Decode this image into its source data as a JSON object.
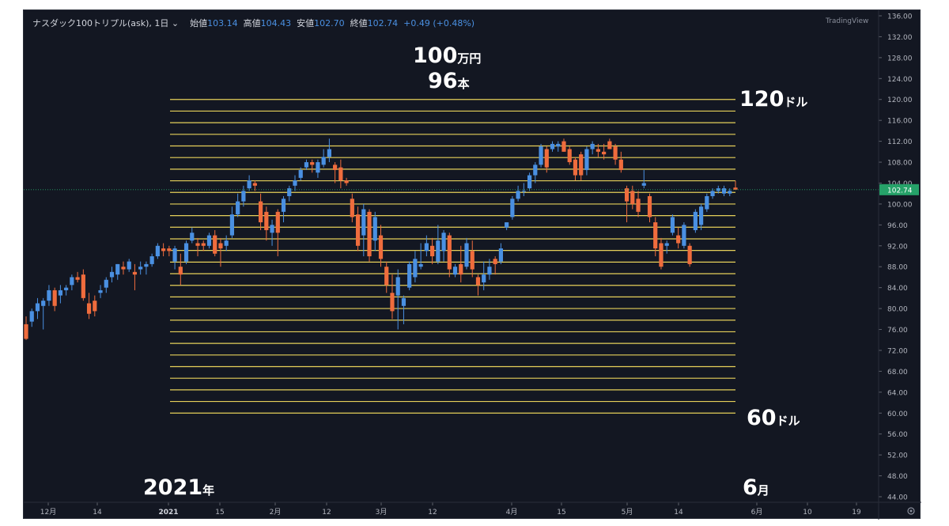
{
  "header": {
    "symbol": "ナスダック100トリプル(ask), 1日",
    "open_label": "始値",
    "open": "103.14",
    "high_label": "高値",
    "high": "104.43",
    "low_label": "安値",
    "low": "102.70",
    "close_label": "終値",
    "close": "102.74",
    "change": "+0.49 (+0.48%)"
  },
  "brand": "TradingView",
  "annotations": {
    "amount_num": "100",
    "amount_unit": "万円",
    "count_num": "96",
    "count_unit": "本",
    "upper_num": "120",
    "upper_unit": "ドル",
    "lower_num": "60",
    "lower_unit": "ドル",
    "start_num": "2021",
    "start_unit": "年",
    "end_num": "6",
    "end_unit": "月"
  },
  "colors": {
    "up": "#4a90e2",
    "down": "#ef6c3d",
    "grid_line": "#e6d05a",
    "price_tag": "#26a269"
  },
  "chart_data": {
    "type": "candlestick",
    "y_axis_ticks": [
      "136.00",
      "132.00",
      "128.00",
      "124.00",
      "120.00",
      "116.00",
      "112.00",
      "108.00",
      "104.00",
      "100.00",
      "96.00",
      "92.00",
      "88.00",
      "84.00",
      "80.00",
      "76.00",
      "72.00",
      "68.00",
      "64.00",
      "60.00",
      "56.00",
      "52.00",
      "48.00",
      "44.00"
    ],
    "ylim": [
      44,
      137
    ],
    "x_axis_labels": [
      "12月",
      "14",
      "2021",
      "15",
      "2月",
      "12",
      "3月",
      "12",
      "4月",
      "15",
      "5月",
      "14",
      "6月",
      "10",
      "19"
    ],
    "last_price": "102.74",
    "grid": {
      "from": 60,
      "to": 120,
      "count": 28
    },
    "candles": [
      {
        "o": 77.0,
        "h": 78.5,
        "l": 74.0,
        "c": 74.2
      },
      {
        "o": 77.5,
        "h": 80.0,
        "l": 76.5,
        "c": 79.5
      },
      {
        "o": 79.5,
        "h": 82.0,
        "l": 78.0,
        "c": 81.0
      },
      {
        "o": 80.5,
        "h": 82.0,
        "l": 76.0,
        "c": 81.5
      },
      {
        "o": 81.5,
        "h": 84.5,
        "l": 80.5,
        "c": 83.5
      },
      {
        "o": 83.5,
        "h": 84.0,
        "l": 79.5,
        "c": 80.5
      },
      {
        "o": 82.5,
        "h": 84.5,
        "l": 81.0,
        "c": 83.5
      },
      {
        "o": 83.5,
        "h": 84.5,
        "l": 82.5,
        "c": 84.0
      },
      {
        "o": 84.5,
        "h": 86.5,
        "l": 83.5,
        "c": 86.0
      },
      {
        "o": 86.0,
        "h": 87.0,
        "l": 85.0,
        "c": 85.5
      },
      {
        "o": 86.5,
        "h": 87.5,
        "l": 81.5,
        "c": 82.0
      },
      {
        "o": 81.0,
        "h": 83.0,
        "l": 78.0,
        "c": 79.0
      },
      {
        "o": 81.5,
        "h": 82.5,
        "l": 78.5,
        "c": 79.5
      },
      {
        "o": 83.0,
        "h": 84.5,
        "l": 82.0,
        "c": 83.5
      },
      {
        "o": 84.0,
        "h": 86.0,
        "l": 83.0,
        "c": 85.5
      },
      {
        "o": 86.0,
        "h": 88.0,
        "l": 85.0,
        "c": 87.0
      },
      {
        "o": 86.5,
        "h": 88.5,
        "l": 85.5,
        "c": 88.5
      },
      {
        "o": 88.0,
        "h": 89.0,
        "l": 86.5,
        "c": 87.5
      },
      {
        "o": 87.5,
        "h": 89.5,
        "l": 87.0,
        "c": 89.0
      },
      {
        "o": 87.0,
        "h": 88.5,
        "l": 83.5,
        "c": 86.5
      },
      {
        "o": 87.5,
        "h": 89.0,
        "l": 86.5,
        "c": 88.0
      },
      {
        "o": 88.0,
        "h": 89.0,
        "l": 86.5,
        "c": 88.5
      },
      {
        "o": 88.5,
        "h": 90.5,
        "l": 88.0,
        "c": 90.0
      },
      {
        "o": 90.0,
        "h": 92.5,
        "l": 89.5,
        "c": 92.0
      },
      {
        "o": 91.5,
        "h": 92.5,
        "l": 90.0,
        "c": 91.0
      },
      {
        "o": 91.5,
        "h": 92.0,
        "l": 90.0,
        "c": 91.0
      },
      {
        "o": 89.0,
        "h": 92.0,
        "l": 87.5,
        "c": 91.5
      },
      {
        "o": 88.0,
        "h": 90.5,
        "l": 84.5,
        "c": 86.5
      },
      {
        "o": 89.0,
        "h": 93.0,
        "l": 88.5,
        "c": 92.5
      },
      {
        "o": 93.0,
        "h": 95.5,
        "l": 92.5,
        "c": 94.5
      },
      {
        "o": 92.5,
        "h": 93.5,
        "l": 90.0,
        "c": 92.0
      },
      {
        "o": 92.5,
        "h": 93.0,
        "l": 91.0,
        "c": 92.0
      },
      {
        "o": 92.0,
        "h": 94.5,
        "l": 91.5,
        "c": 94.0
      },
      {
        "o": 94.0,
        "h": 95.0,
        "l": 90.0,
        "c": 90.5
      },
      {
        "o": 92.5,
        "h": 93.5,
        "l": 88.0,
        "c": 91.5
      },
      {
        "o": 92.0,
        "h": 94.0,
        "l": 91.0,
        "c": 93.0
      },
      {
        "o": 94.0,
        "h": 99.5,
        "l": 93.5,
        "c": 98.0
      },
      {
        "o": 98.0,
        "h": 102.0,
        "l": 97.5,
        "c": 100.5
      },
      {
        "o": 100.5,
        "h": 103.5,
        "l": 99.5,
        "c": 102.5
      },
      {
        "o": 103.0,
        "h": 105.5,
        "l": 102.5,
        "c": 104.5
      },
      {
        "o": 104.0,
        "h": 104.5,
        "l": 102.5,
        "c": 103.5
      },
      {
        "o": 100.5,
        "h": 102.0,
        "l": 95.0,
        "c": 96.5
      },
      {
        "o": 98.5,
        "h": 99.5,
        "l": 93.0,
        "c": 95.0
      },
      {
        "o": 94.5,
        "h": 97.0,
        "l": 92.0,
        "c": 96.0
      },
      {
        "o": 98.5,
        "h": 99.0,
        "l": 90.0,
        "c": 94.5
      },
      {
        "o": 98.5,
        "h": 101.5,
        "l": 96.5,
        "c": 101.0
      },
      {
        "o": 101.5,
        "h": 103.5,
        "l": 100.5,
        "c": 103.0
      },
      {
        "o": 103.5,
        "h": 105.5,
        "l": 102.5,
        "c": 104.5
      },
      {
        "o": 105.0,
        "h": 107.0,
        "l": 104.5,
        "c": 106.5
      },
      {
        "o": 107.0,
        "h": 108.5,
        "l": 106.5,
        "c": 108.0
      },
      {
        "o": 108.0,
        "h": 108.5,
        "l": 106.0,
        "c": 107.5
      },
      {
        "o": 106.0,
        "h": 108.5,
        "l": 105.0,
        "c": 108.0
      },
      {
        "o": 107.5,
        "h": 110.5,
        "l": 107.0,
        "c": 109.0
      },
      {
        "o": 109.0,
        "h": 112.5,
        "l": 108.0,
        "c": 110.5
      },
      {
        "o": 107.5,
        "h": 108.0,
        "l": 104.0,
        "c": 106.5
      },
      {
        "o": 107.0,
        "h": 108.5,
        "l": 103.0,
        "c": 104.5
      },
      {
        "o": 104.5,
        "h": 105.0,
        "l": 103.5,
        "c": 104.0
      },
      {
        "o": 101.0,
        "h": 102.0,
        "l": 96.5,
        "c": 97.5
      },
      {
        "o": 98.0,
        "h": 99.5,
        "l": 91.0,
        "c": 92.0
      },
      {
        "o": 94.0,
        "h": 100.0,
        "l": 90.0,
        "c": 99.0
      },
      {
        "o": 98.5,
        "h": 99.0,
        "l": 89.0,
        "c": 90.0
      },
      {
        "o": 93.0,
        "h": 98.5,
        "l": 91.0,
        "c": 97.5
      },
      {
        "o": 94.0,
        "h": 96.0,
        "l": 88.0,
        "c": 89.5
      },
      {
        "o": 88.0,
        "h": 89.0,
        "l": 83.0,
        "c": 84.5
      },
      {
        "o": 83.0,
        "h": 86.5,
        "l": 78.0,
        "c": 79.5
      },
      {
        "o": 82.5,
        "h": 87.5,
        "l": 76.0,
        "c": 86.0
      },
      {
        "o": 80.5,
        "h": 82.5,
        "l": 77.0,
        "c": 82.0
      },
      {
        "o": 84.0,
        "h": 89.0,
        "l": 83.5,
        "c": 88.5
      },
      {
        "o": 86.0,
        "h": 91.0,
        "l": 85.0,
        "c": 89.5
      },
      {
        "o": 88.0,
        "h": 92.5,
        "l": 87.5,
        "c": 88.5
      },
      {
        "o": 91.0,
        "h": 94.0,
        "l": 90.0,
        "c": 92.5
      },
      {
        "o": 92.0,
        "h": 93.5,
        "l": 88.5,
        "c": 90.0
      },
      {
        "o": 89.0,
        "h": 96.0,
        "l": 88.5,
        "c": 93.0
      },
      {
        "o": 91.0,
        "h": 95.0,
        "l": 89.0,
        "c": 94.5
      },
      {
        "o": 94.0,
        "h": 94.5,
        "l": 86.0,
        "c": 87.5
      },
      {
        "o": 86.5,
        "h": 88.5,
        "l": 86.0,
        "c": 88.0
      },
      {
        "o": 88.5,
        "h": 92.0,
        "l": 85.0,
        "c": 86.5
      },
      {
        "o": 88.0,
        "h": 93.5,
        "l": 87.5,
        "c": 92.5
      },
      {
        "o": 91.0,
        "h": 93.0,
        "l": 86.0,
        "c": 87.5
      },
      {
        "o": 86.0,
        "h": 86.5,
        "l": 82.5,
        "c": 84.5
      },
      {
        "o": 85.0,
        "h": 89.0,
        "l": 83.5,
        "c": 86.5
      },
      {
        "o": 86.5,
        "h": 89.5,
        "l": 85.5,
        "c": 88.0
      },
      {
        "o": 89.5,
        "h": 90.0,
        "l": 86.5,
        "c": 88.5
      },
      {
        "o": 89.0,
        "h": 92.5,
        "l": 88.5,
        "c": 91.5
      },
      {
        "o": 95.5,
        "h": 96.5,
        "l": 95.0,
        "c": 96.5
      },
      {
        "o": 97.5,
        "h": 101.5,
        "l": 97.0,
        "c": 101.0
      },
      {
        "o": 101.0,
        "h": 103.5,
        "l": 100.5,
        "c": 102.5
      },
      {
        "o": 102.5,
        "h": 104.0,
        "l": 101.5,
        "c": 102.5
      },
      {
        "o": 103.0,
        "h": 106.0,
        "l": 102.5,
        "c": 105.5
      },
      {
        "o": 105.5,
        "h": 108.0,
        "l": 104.0,
        "c": 107.5
      },
      {
        "o": 107.5,
        "h": 111.5,
        "l": 107.0,
        "c": 111.0
      },
      {
        "o": 110.5,
        "h": 111.0,
        "l": 106.0,
        "c": 107.0
      },
      {
        "o": 110.5,
        "h": 112.0,
        "l": 110.0,
        "c": 111.5
      },
      {
        "o": 111.0,
        "h": 112.0,
        "l": 110.0,
        "c": 111.5
      },
      {
        "o": 112.0,
        "h": 112.5,
        "l": 110.0,
        "c": 110.0
      },
      {
        "o": 110.5,
        "h": 111.0,
        "l": 107.5,
        "c": 108.0
      },
      {
        "o": 108.5,
        "h": 109.0,
        "l": 104.5,
        "c": 105.5
      },
      {
        "o": 109.5,
        "h": 110.0,
        "l": 104.5,
        "c": 105.5
      },
      {
        "o": 106.5,
        "h": 111.0,
        "l": 105.5,
        "c": 110.5
      },
      {
        "o": 110.5,
        "h": 112.0,
        "l": 109.5,
        "c": 111.5
      },
      {
        "o": 110.5,
        "h": 111.5,
        "l": 109.0,
        "c": 110.0
      },
      {
        "o": 110.0,
        "h": 111.5,
        "l": 108.5,
        "c": 109.5
      },
      {
        "o": 112.0,
        "h": 112.5,
        "l": 110.5,
        "c": 110.5
      },
      {
        "o": 111.0,
        "h": 111.5,
        "l": 107.5,
        "c": 108.5
      },
      {
        "o": 108.5,
        "h": 110.0,
        "l": 106.0,
        "c": 106.5
      },
      {
        "o": 103.0,
        "h": 103.5,
        "l": 96.5,
        "c": 100.5
      },
      {
        "o": 102.5,
        "h": 103.5,
        "l": 99.0,
        "c": 100.0
      },
      {
        "o": 101.0,
        "h": 102.5,
        "l": 97.5,
        "c": 98.5
      },
      {
        "o": 103.5,
        "h": 106.5,
        "l": 103.0,
        "c": 104.0
      },
      {
        "o": 101.5,
        "h": 102.0,
        "l": 96.5,
        "c": 97.5
      },
      {
        "o": 96.5,
        "h": 97.5,
        "l": 90.0,
        "c": 91.5
      },
      {
        "o": 92.5,
        "h": 93.5,
        "l": 87.5,
        "c": 88.0
      },
      {
        "o": 92.0,
        "h": 93.0,
        "l": 90.5,
        "c": 92.5
      },
      {
        "o": 94.5,
        "h": 98.0,
        "l": 94.0,
        "c": 97.5
      },
      {
        "o": 94.0,
        "h": 95.5,
        "l": 91.5,
        "c": 92.5
      },
      {
        "o": 92.0,
        "h": 96.5,
        "l": 91.5,
        "c": 96.0
      },
      {
        "o": 92.0,
        "h": 92.5,
        "l": 88.0,
        "c": 88.5
      },
      {
        "o": 95.0,
        "h": 99.0,
        "l": 94.5,
        "c": 98.5
      },
      {
        "o": 96.0,
        "h": 100.0,
        "l": 95.0,
        "c": 99.5
      },
      {
        "o": 99.0,
        "h": 102.0,
        "l": 98.5,
        "c": 101.5
      },
      {
        "o": 101.5,
        "h": 103.0,
        "l": 101.0,
        "c": 102.5
      },
      {
        "o": 102.5,
        "h": 103.5,
        "l": 102.0,
        "c": 103.0
      },
      {
        "o": 102.0,
        "h": 103.5,
        "l": 101.5,
        "c": 103.0
      },
      {
        "o": 102.0,
        "h": 103.0,
        "l": 101.5,
        "c": 102.5
      },
      {
        "o": 103.14,
        "h": 104.43,
        "l": 102.7,
        "c": 102.74
      }
    ]
  }
}
